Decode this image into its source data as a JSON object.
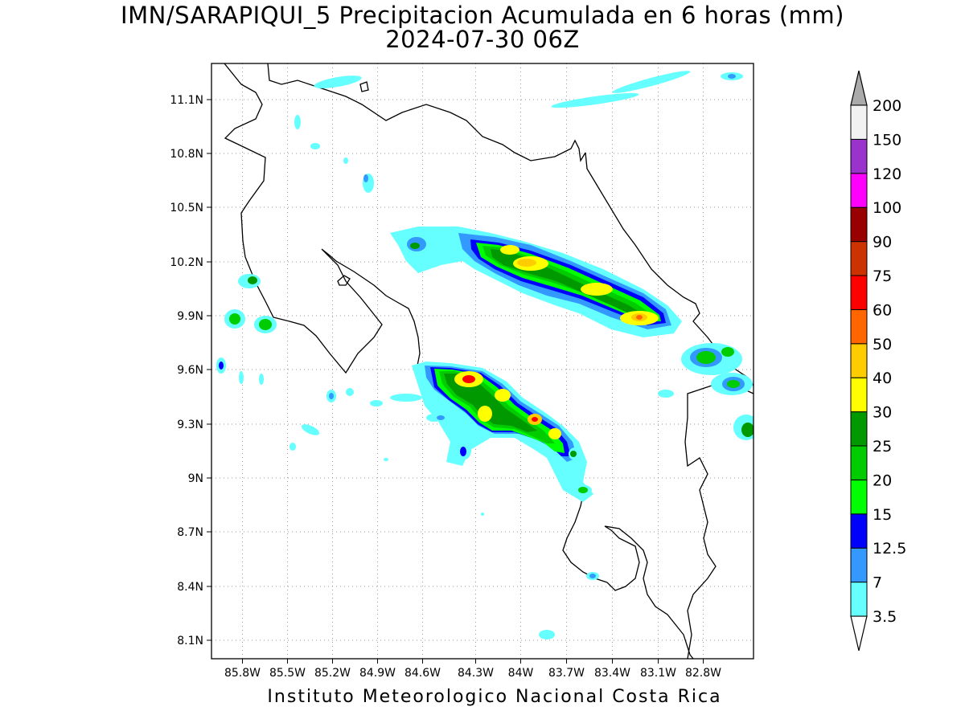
{
  "title_line1": "IMN/SARAPIQUI_5 Precipitacion Acumulada en 6 horas (mm)",
  "title_line2": "2024-07-30 06Z",
  "footer": "Instituto Meteorologico Nacional Costa Rica",
  "map": {
    "lon_range": [
      -86.05,
      -82.55
    ],
    "lat_range": [
      8.0,
      11.3
    ],
    "x_ticks": [
      "85.8W",
      "85.5W",
      "85.2W",
      "84.9W",
      "84.6W",
      "84.3W",
      "84W",
      "83.7W",
      "83.4W",
      "83.1W",
      "82.8W"
    ],
    "y_ticks": [
      "11.1N",
      "10.8N",
      "10.5N",
      "10.2N",
      "9.9N",
      "9.6N",
      "9.3N",
      "9N",
      "8.7N",
      "8.4N",
      "8.1N"
    ],
    "grid": "dotted"
  },
  "colorbar": {
    "levels": [
      "3.5",
      "7",
      "12.5",
      "15",
      "20",
      "25",
      "30",
      "40",
      "50",
      "60",
      "75",
      "90",
      "100",
      "120",
      "150",
      "200"
    ],
    "colors": [
      "#ffffff",
      "#66ffff",
      "#3399ff",
      "#0000ff",
      "#00ff00",
      "#00cc00",
      "#009900",
      "#ffff00",
      "#ffcc00",
      "#ff6600",
      "#ff0000",
      "#cc3300",
      "#990000",
      "#ff00ff",
      "#9933cc",
      "#f2f2f2",
      "#aaaaaa"
    ]
  },
  "icon_names": [
    "colorbar-top-arrow-icon",
    "colorbar-bottom-arrow-icon"
  ]
}
